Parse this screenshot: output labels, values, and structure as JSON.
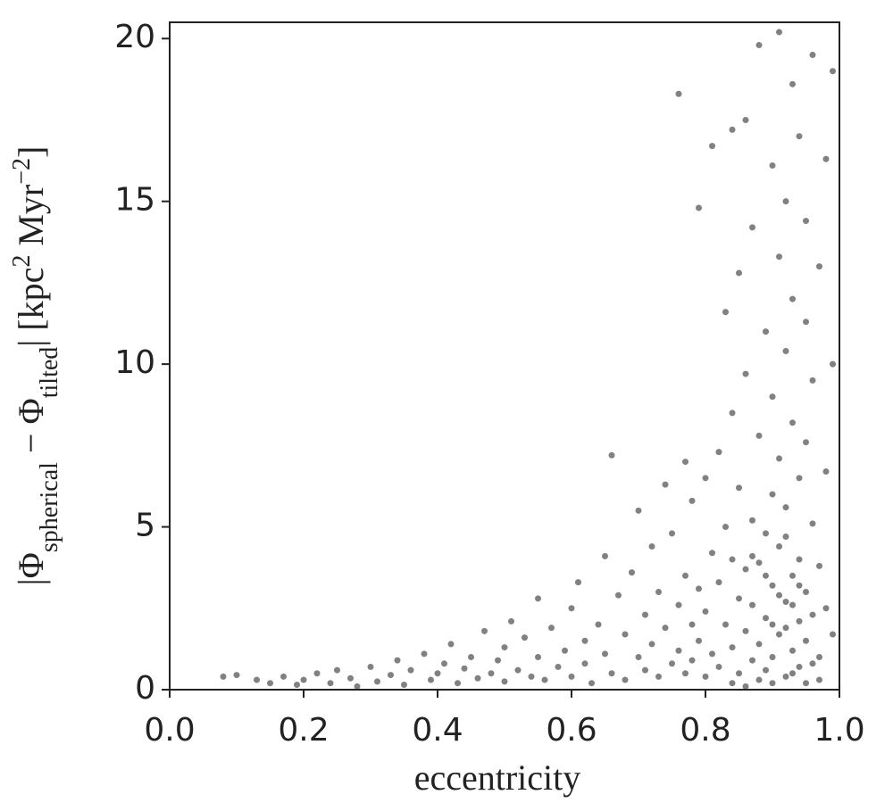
{
  "chart_data": {
    "type": "scatter",
    "xlabel": "eccentricity",
    "ylabel": [
      "|Φ",
      "spherical",
      " − Φ",
      "tilted",
      "| [kpc",
      "2",
      " Myr",
      "−2",
      "]"
    ],
    "color": "#1a1a1a",
    "xlim": [
      0,
      1
    ],
    "ylim": [
      0,
      20.5
    ],
    "xticks": [
      {
        "value": 0,
        "label": "0.0"
      },
      0.2,
      0.4,
      0.6,
      0.8,
      {
        "value": 1,
        "label": "1.0"
      }
    ],
    "yticks": [
      0,
      5,
      10,
      15,
      20
    ],
    "x": [
      0.08,
      0.1,
      0.13,
      0.15,
      0.17,
      0.19,
      0.2,
      0.22,
      0.24,
      0.25,
      0.27,
      0.28,
      0.3,
      0.31,
      0.33,
      0.34,
      0.35,
      0.36,
      0.38,
      0.39,
      0.4,
      0.41,
      0.42,
      0.43,
      0.44,
      0.45,
      0.46,
      0.47,
      0.48,
      0.49,
      0.5,
      0.5,
      0.51,
      0.52,
      0.53,
      0.54,
      0.55,
      0.55,
      0.56,
      0.57,
      0.58,
      0.59,
      0.6,
      0.6,
      0.61,
      0.62,
      0.62,
      0.63,
      0.64,
      0.65,
      0.65,
      0.66,
      0.66,
      0.67,
      0.68,
      0.68,
      0.69,
      0.7,
      0.7,
      0.71,
      0.71,
      0.72,
      0.72,
      0.73,
      0.73,
      0.74,
      0.74,
      0.75,
      0.75,
      0.76,
      0.76,
      0.76,
      0.77,
      0.77,
      0.77,
      0.78,
      0.78,
      0.78,
      0.79,
      0.79,
      0.79,
      0.8,
      0.8,
      0.8,
      0.81,
      0.81,
      0.81,
      0.82,
      0.82,
      0.82,
      0.83,
      0.83,
      0.83,
      0.84,
      0.84,
      0.84,
      0.84,
      0.85,
      0.85,
      0.85,
      0.85,
      0.86,
      0.86,
      0.86,
      0.86,
      0.87,
      0.87,
      0.87,
      0.87,
      0.88,
      0.88,
      0.88,
      0.88,
      0.89,
      0.89,
      0.89,
      0.89,
      0.9,
      0.9,
      0.9,
      0.9,
      0.9,
      0.91,
      0.91,
      0.91,
      0.91,
      0.91,
      0.92,
      0.92,
      0.92,
      0.92,
      0.92,
      0.93,
      0.93,
      0.93,
      0.93,
      0.93,
      0.94,
      0.94,
      0.94,
      0.94,
      0.94,
      0.95,
      0.95,
      0.95,
      0.95,
      0.95,
      0.96,
      0.96,
      0.96,
      0.96,
      0.97,
      0.97,
      0.97,
      0.97,
      0.98,
      0.98,
      0.98,
      0.99,
      0.99,
      0.99,
      0.84,
      0.86,
      0.88,
      0.9,
      0.92,
      0.93,
      0.95,
      0.96,
      0.91,
      0.89,
      0.87,
      0.94,
      0.92,
      0.9,
      0.93
    ],
    "values": [
      0.4,
      0.45,
      0.3,
      0.2,
      0.4,
      0.15,
      0.3,
      0.5,
      0.2,
      0.6,
      0.35,
      0.1,
      0.7,
      0.25,
      0.45,
      0.9,
      0.15,
      0.6,
      1.1,
      0.3,
      0.5,
      0.8,
      1.4,
      0.2,
      0.65,
      1.0,
      0.35,
      1.8,
      0.5,
      0.9,
      0.25,
      1.3,
      2.1,
      0.6,
      1.6,
      0.4,
      1.0,
      2.8,
      0.3,
      1.9,
      0.7,
      1.2,
      2.5,
      0.4,
      3.3,
      1.5,
      0.8,
      0.2,
      2.0,
      4.1,
      1.1,
      7.2,
      0.5,
      2.9,
      1.7,
      0.3,
      3.6,
      1.0,
      5.5,
      2.3,
      0.6,
      4.4,
      1.4,
      0.4,
      3.0,
      6.3,
      1.9,
      0.8,
      4.8,
      2.6,
      18.3,
      1.2,
      7.0,
      0.5,
      3.5,
      2.0,
      5.8,
      0.9,
      14.8,
      3.1,
      1.5,
      6.5,
      0.4,
      2.4,
      4.2,
      16.7,
      1.1,
      7.3,
      3.3,
      0.7,
      5.0,
      2.0,
      11.6,
      17.2,
      4.0,
      1.3,
      8.5,
      2.8,
      6.2,
      0.5,
      12.8,
      3.7,
      1.8,
      9.7,
      17.5,
      5.2,
      0.9,
      2.6,
      14.2,
      7.8,
      3.9,
      1.4,
      19.8,
      4.8,
      11.0,
      0.6,
      2.2,
      6.0,
      16.1,
      3.2,
      1.0,
      9.0,
      13.3,
      4.4,
      1.7,
      20.2,
      7.1,
      2.7,
      10.4,
      0.4,
      5.6,
      15.0,
      3.5,
      8.2,
      1.2,
      18.6,
      12.0,
      6.5,
      2.1,
      4.0,
      0.7,
      17.0,
      11.3,
      3.0,
      1.5,
      7.6,
      14.4,
      5.1,
      2.3,
      19.5,
      9.5,
      1.0,
      3.8,
      13.0,
      0.3,
      6.7,
      16.3,
      2.5,
      10.0,
      19.0,
      1.7,
      0.2,
      0.1,
      0.3,
      0.2,
      1.9,
      0.5,
      0.2,
      0.8,
      2.9,
      3.5,
      4.1,
      3.2,
      4.7,
      2.0,
      2.6
    ]
  }
}
